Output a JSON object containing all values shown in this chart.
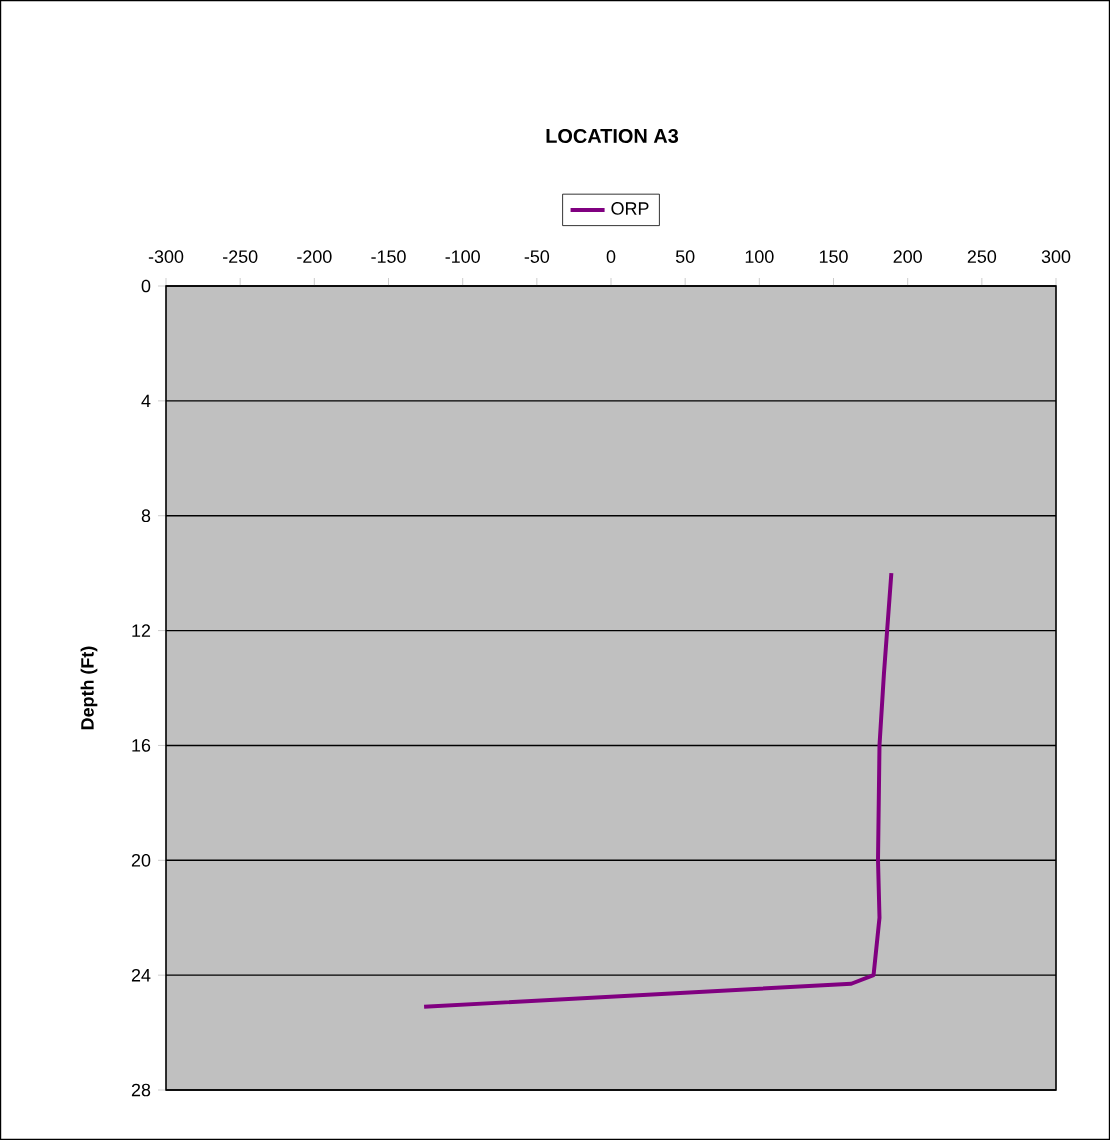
{
  "chart_data": {
    "type": "line",
    "title": "LOCATION A3",
    "ylabel": "Depth (Ft)",
    "series": [
      {
        "name": "ORP",
        "color": "#800080",
        "x": [
          189,
          184,
          181,
          180,
          181,
          177,
          162,
          -126
        ],
        "values": [
          10,
          13.5,
          16,
          20,
          22,
          24,
          24.3,
          25.1
        ]
      }
    ],
    "xlim": [
      -300,
      300
    ],
    "xticks": [
      -300,
      -250,
      -200,
      -150,
      -100,
      -50,
      0,
      50,
      100,
      150,
      200,
      250,
      300
    ],
    "ylim": [
      28,
      0
    ],
    "yticks": [
      0,
      4,
      8,
      12,
      16,
      20,
      24,
      28
    ],
    "grid": "y",
    "legend": "top",
    "marker": "none",
    "line_style": "solid"
  }
}
